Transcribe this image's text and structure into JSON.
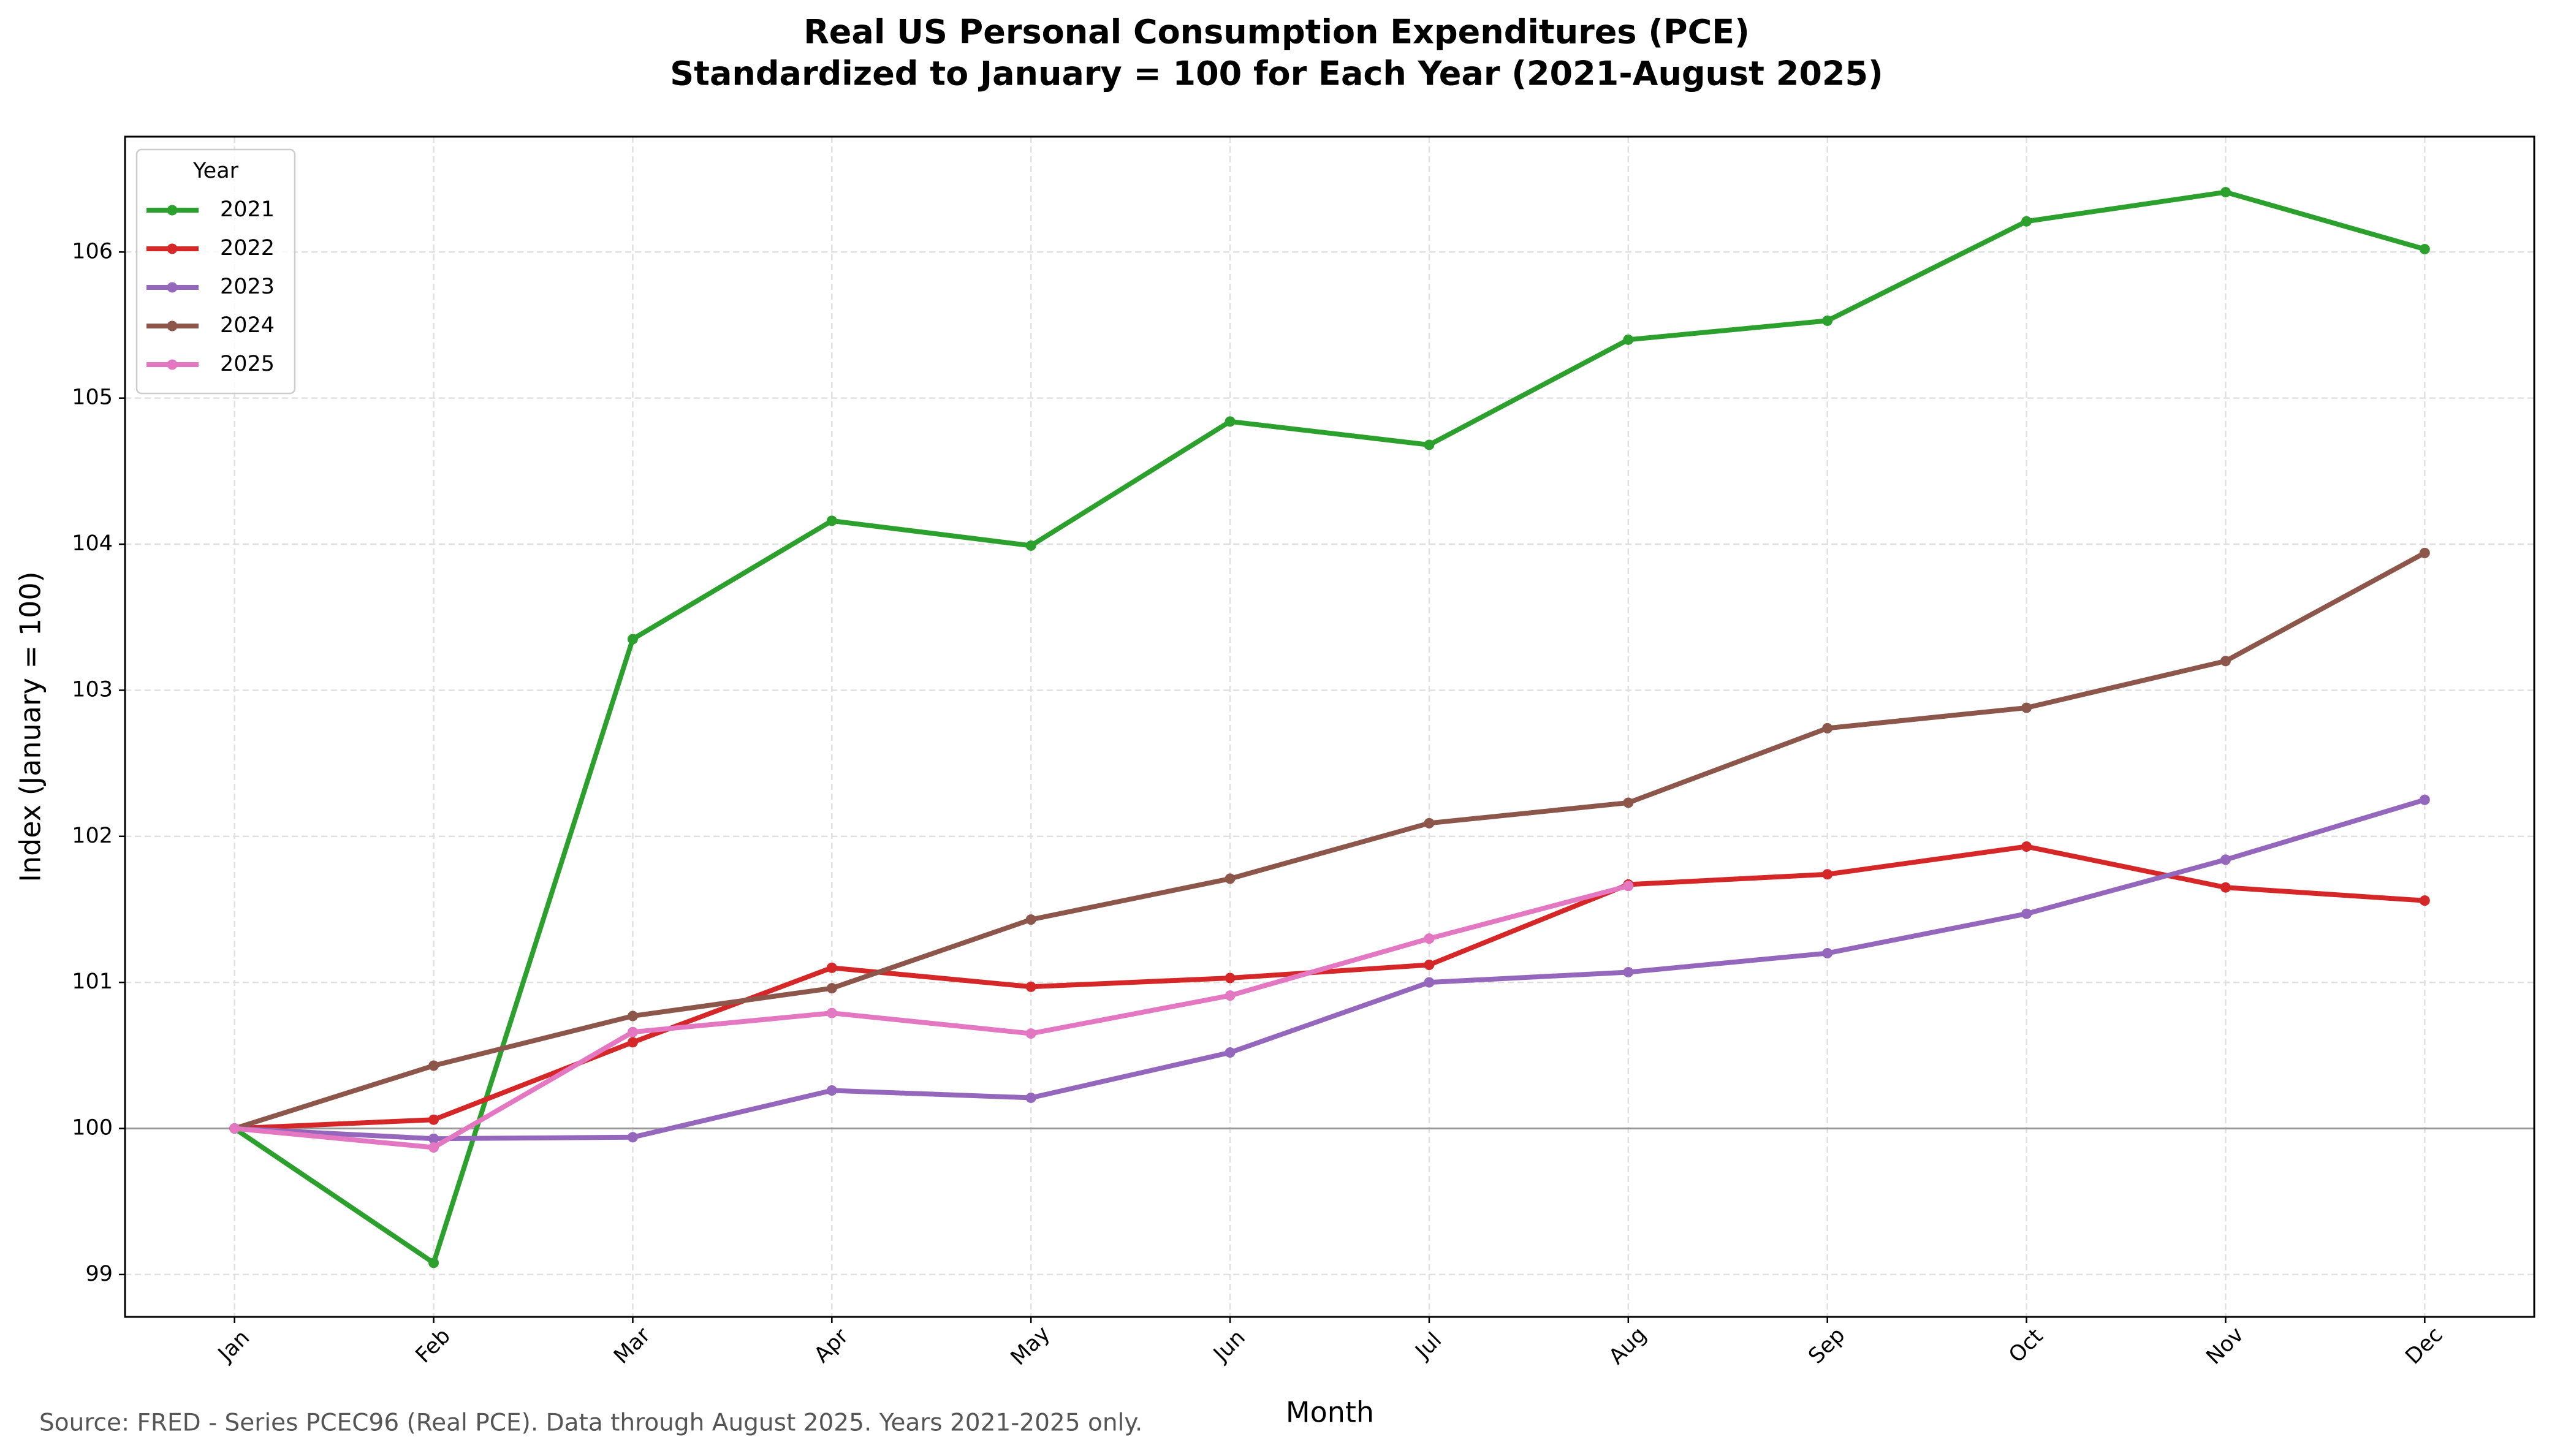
{
  "chart_data": {
    "type": "line",
    "title": "Real US Personal Consumption Expenditures (PCE)",
    "subtitle": "Standardized to January = 100 for Each Year (2021-August 2025)",
    "x_label": "Month",
    "y_label": "Index (January = 100)",
    "source": "Source: FRED - Series PCEC96 (Real PCE). Data through August 2025. Years 2021-2025 only.",
    "legend_title": "Year",
    "legend_position": "upper left",
    "grid": true,
    "reference_line": 100,
    "categories": [
      "Jan",
      "Feb",
      "Mar",
      "Apr",
      "May",
      "Jun",
      "Jul",
      "Aug",
      "Sep",
      "Oct",
      "Nov",
      "Dec"
    ],
    "ylim": [
      98.71,
      106.79
    ],
    "yticks": [
      99,
      100,
      101,
      102,
      103,
      104,
      105,
      106
    ],
    "series": [
      {
        "name": "2021",
        "color": "#2ca02c",
        "values": [
          100,
          99.08,
          103.35,
          104.16,
          103.99,
          104.84,
          104.68,
          105.4,
          105.53,
          106.21,
          106.41,
          106.02
        ]
      },
      {
        "name": "2022",
        "color": "#d62728",
        "values": [
          100,
          100.06,
          100.59,
          101.1,
          100.97,
          101.03,
          101.12,
          101.67,
          101.74,
          101.93,
          101.65,
          101.56
        ]
      },
      {
        "name": "2023",
        "color": "#9467bd",
        "values": [
          100,
          99.93,
          99.94,
          100.26,
          100.21,
          100.52,
          101.0,
          101.07,
          101.2,
          101.47,
          101.84,
          102.25
        ]
      },
      {
        "name": "2024",
        "color": "#8c564b",
        "values": [
          100,
          100.43,
          100.77,
          100.96,
          101.43,
          101.71,
          102.09,
          102.23,
          102.74,
          102.88,
          103.2,
          103.94
        ]
      },
      {
        "name": "2025",
        "color": "#e377c2",
        "values": [
          100,
          99.87,
          100.66,
          100.79,
          100.65,
          100.91,
          101.3,
          101.66,
          null,
          null,
          null,
          null
        ]
      }
    ]
  }
}
